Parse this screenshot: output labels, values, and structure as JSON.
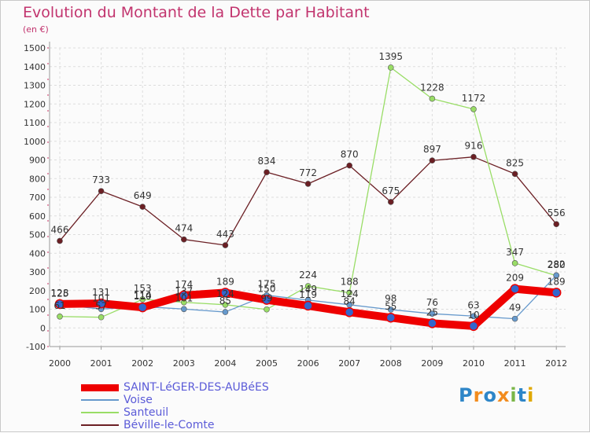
{
  "chart_data": {
    "type": "line",
    "title": "Evolution du Montant de la Dette par Habitant",
    "subtitle": "(en €)",
    "xlabel": "",
    "ylabel": "",
    "ylim": [
      -100,
      1500
    ],
    "y_ticks": [
      -100,
      0,
      100,
      200,
      300,
      400,
      500,
      600,
      700,
      800,
      900,
      1000,
      1100,
      1200,
      1300,
      1400,
      1500
    ],
    "categories": [
      "2000",
      "2001",
      "2002",
      "2003",
      "2004",
      "2005",
      "2006",
      "2007",
      "2008",
      "2009",
      "2010",
      "2011",
      "2012"
    ],
    "grid": true,
    "legend_position": "bottom-left",
    "series": [
      {
        "name": "SAINT-LéGER-DES-AUBéES",
        "color": "#ee0000",
        "values": [
          128,
          131,
          110,
          174,
          189,
          150,
          119,
          84,
          55,
          25,
          10,
          209,
          189
        ]
      },
      {
        "name": "Voise",
        "color": "#6699cc",
        "values": [
          125,
          101,
          114,
          101,
          85,
          175,
          149,
          124,
          98,
          76,
          63,
          49,
          282
        ]
      },
      {
        "name": "Santeuil",
        "color": "#99dd66",
        "values": [
          61,
          57,
          153,
          137,
          124,
          99,
          224,
          188,
          1395,
          1228,
          1172,
          347,
          280
        ]
      },
      {
        "name": "Béville-le-Comte",
        "color": "#6b1f24",
        "values": [
          466,
          733,
          649,
          474,
          443,
          834,
          772,
          870,
          675,
          897,
          916,
          825,
          556
        ]
      }
    ]
  },
  "logo": {
    "letters": [
      "P",
      "r",
      "o",
      "x",
      "i",
      "t",
      "i"
    ],
    "colors": [
      "#2e86c8",
      "#f28c1e",
      "#2e86c8",
      "#f28c1e",
      "#7ab648",
      "#2e86c8",
      "#e0a800"
    ]
  }
}
